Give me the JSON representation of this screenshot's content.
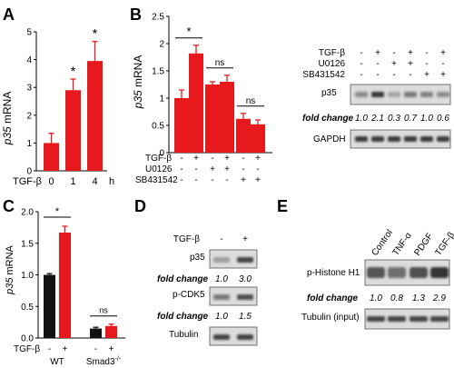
{
  "panel_letters": [
    "A",
    "B",
    "C",
    "D",
    "E"
  ],
  "tgf_label": "TGF-β",
  "u0126_label": "U0126",
  "sb_label": "SB431542",
  "colors": {
    "red": "#e8191c",
    "black": "#111111",
    "blot_bg": "#dcdcdc",
    "band": "#2a2a2a"
  },
  "chart_data": [
    {
      "panel": "A",
      "type": "bar",
      "ylabel_gene": "p35",
      "ylabel_rest": " mRNA",
      "xprefix": "TGF-β",
      "categories": [
        "0",
        "1",
        "4"
      ],
      "xunit": "h",
      "values": [
        1.0,
        2.9,
        3.95
      ],
      "errors": [
        0.35,
        0.4,
        0.7
      ],
      "ylim": [
        0,
        5
      ],
      "yticks": [
        "0",
        "1",
        "2",
        "3",
        "4",
        "5"
      ],
      "significance": [
        null,
        "*",
        "*"
      ]
    },
    {
      "panel": "B",
      "type": "bar",
      "ylabel_gene": "p35",
      "ylabel_rest": " mRNA",
      "values": [
        1.0,
        1.82,
        1.25,
        1.3,
        0.62,
        0.52
      ],
      "errors": [
        0.15,
        0.15,
        0.05,
        0.12,
        0.1,
        0.08
      ],
      "ylim": [
        0,
        2.5
      ],
      "yticks": [
        "0",
        "0.5",
        "1",
        "1.5",
        "2",
        "2.5"
      ],
      "conditions": {
        "TGF-β": [
          "-",
          "+",
          "-",
          "+",
          "-",
          "+"
        ],
        "U0126": [
          "-",
          "-",
          "+",
          "+",
          "-",
          "-"
        ],
        "SB431542": [
          "-",
          "-",
          "-",
          "-",
          "+",
          "+"
        ]
      },
      "comparisons": [
        [
          "*",
          0,
          1
        ],
        [
          "ns",
          2,
          3
        ],
        [
          "ns",
          4,
          5
        ]
      ]
    },
    {
      "panel": "C",
      "type": "bar",
      "ylabel_gene": "p35",
      "ylabel_rest": " mRNA",
      "groups": [
        "WT",
        "Smad3"
      ],
      "group_superscript": [
        "",
        "-/-"
      ],
      "tgf": [
        "-",
        "+",
        "-",
        "+"
      ],
      "values": [
        1.0,
        1.67,
        0.15,
        0.19
      ],
      "errors": [
        0.02,
        0.1,
        0.02,
        0.03
      ],
      "bar_colors": [
        "black",
        "red",
        "black",
        "red"
      ],
      "ylim": [
        0,
        2.0
      ],
      "yticks": [
        "0.0",
        "0.5",
        "1.0",
        "1.5",
        "2.0"
      ],
      "comparisons": [
        [
          "*",
          0,
          1
        ],
        [
          "ns",
          2,
          3
        ]
      ]
    }
  ],
  "blot_B": {
    "signs": {
      "TGF-β": [
        "-",
        "+",
        "-",
        "+",
        "-",
        "+"
      ],
      "U0126": [
        "-",
        "-",
        "+",
        "+",
        "-",
        "-"
      ],
      "SB431542": [
        "-",
        "-",
        "-",
        "-",
        "+",
        "+"
      ]
    },
    "rows": [
      "p35",
      "GAPDH"
    ],
    "fold_label": "fold change",
    "fold": [
      "1.0",
      "2.1",
      "0.3",
      "0.7",
      "1.0",
      "0.6"
    ],
    "intensity": [
      [
        0.45,
        0.9,
        0.3,
        0.55,
        0.5,
        0.45
      ],
      [
        0.9,
        0.9,
        0.9,
        0.9,
        0.9,
        0.9
      ]
    ]
  },
  "blot_D": {
    "signs": [
      "-",
      "+"
    ],
    "rows": [
      "p35",
      "p-CDK5",
      "Tubulin"
    ],
    "fold_label": "fold change",
    "fold_p35": [
      "1.0",
      "3.0"
    ],
    "fold_cdk5": [
      "1.0",
      "1.5"
    ],
    "intensity": [
      [
        0.35,
        0.85
      ],
      [
        0.55,
        0.8
      ],
      [
        0.85,
        0.85
      ]
    ]
  },
  "blot_E": {
    "lanes": [
      "Control",
      "TNF-α",
      "PDGF",
      "TGF-β"
    ],
    "rows": [
      "p-Histone H1",
      "Tubulin (input)"
    ],
    "fold_label": "fold change",
    "fold": [
      "1.0",
      "0.8",
      "1.3",
      "2.9"
    ],
    "intensity": [
      [
        0.75,
        0.6,
        0.8,
        0.95
      ],
      [
        0.85,
        0.85,
        0.85,
        0.85
      ]
    ]
  }
}
